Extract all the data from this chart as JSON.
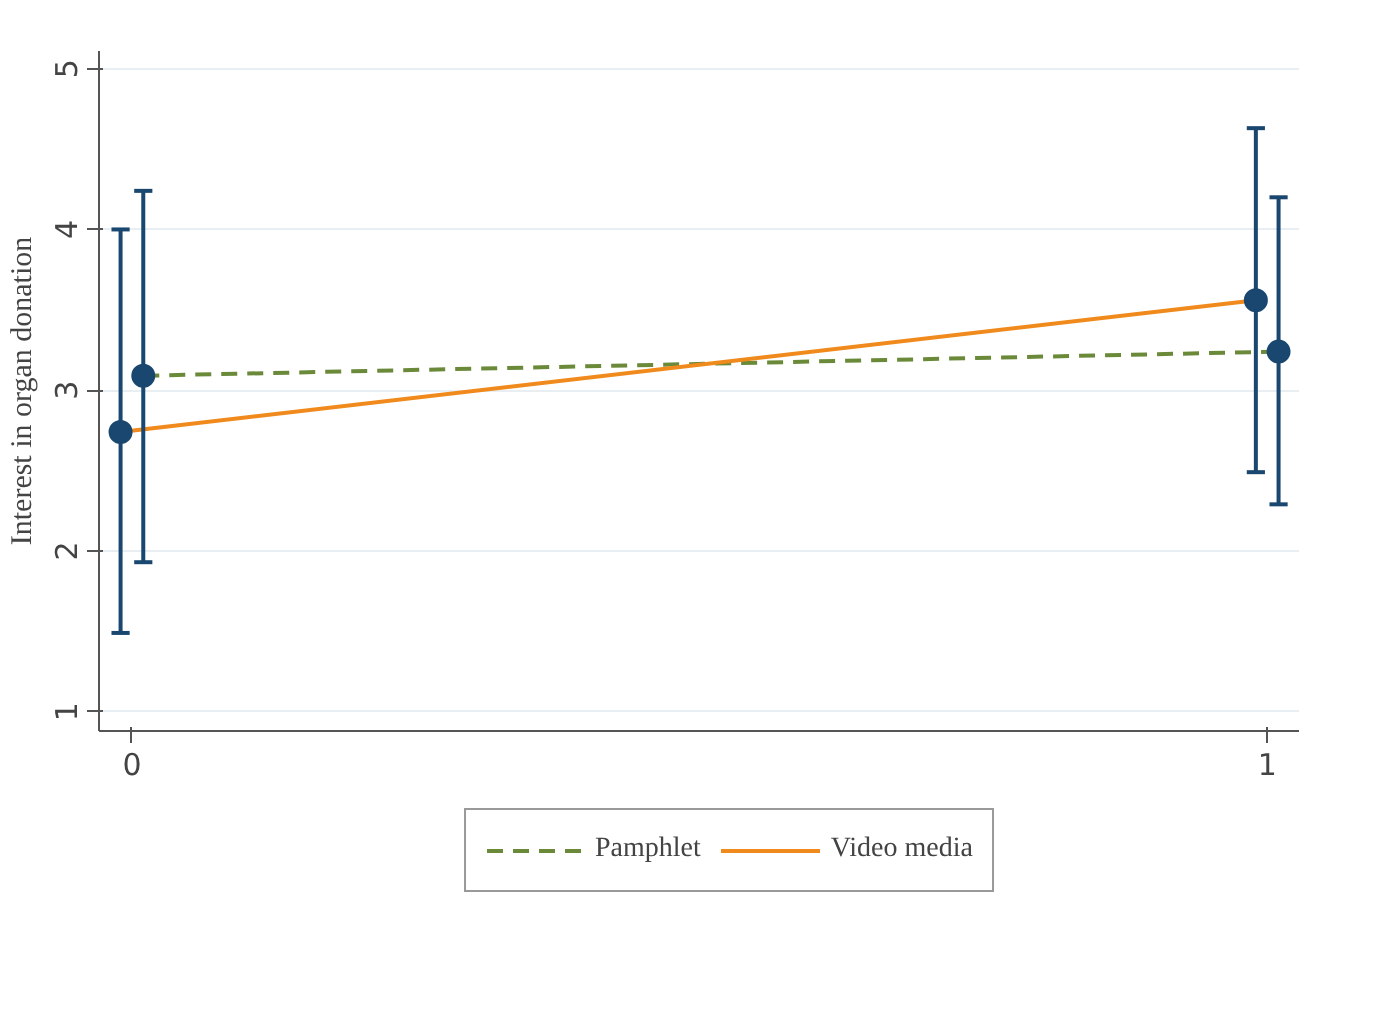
{
  "chart_data": {
    "type": "line",
    "ylabel": "Interest in organ donation",
    "xlim": [
      -0.029,
      1.028
    ],
    "xticks": [
      0,
      1
    ],
    "ylim": [
      0.88,
      5.11
    ],
    "yticks": [
      1,
      2,
      3,
      4,
      5
    ],
    "grid": "y",
    "legend": "bottom",
    "series": [
      {
        "name": "Pamphlet",
        "color": "#6a8a3a",
        "line_style": "dashed",
        "marker": "none",
        "x": [
          0.01,
          1.01
        ],
        "values": [
          3.09,
          3.24
        ]
      },
      {
        "name": "Video media",
        "color": "#f08a1c",
        "line_style": "solid",
        "marker": "none",
        "x": [
          -0.01,
          0.99
        ],
        "values": [
          2.74,
          3.56
        ]
      },
      {
        "type": "scatter",
        "color": "#1a476f",
        "marker": "circle",
        "x": [
          -0.01,
          0.99
        ],
        "values": [
          2.74,
          3.56
        ],
        "errors": [
          [
            1.49,
            4.0
          ],
          [
            2.49,
            4.63
          ]
        ]
      },
      {
        "type": "scatter",
        "color": "#1a476f",
        "marker": "circle",
        "x": [
          0.01,
          1.01
        ],
        "values": [
          3.09,
          3.24
        ],
        "errors": [
          [
            1.93,
            4.24
          ],
          [
            2.29,
            4.2
          ]
        ]
      }
    ]
  }
}
